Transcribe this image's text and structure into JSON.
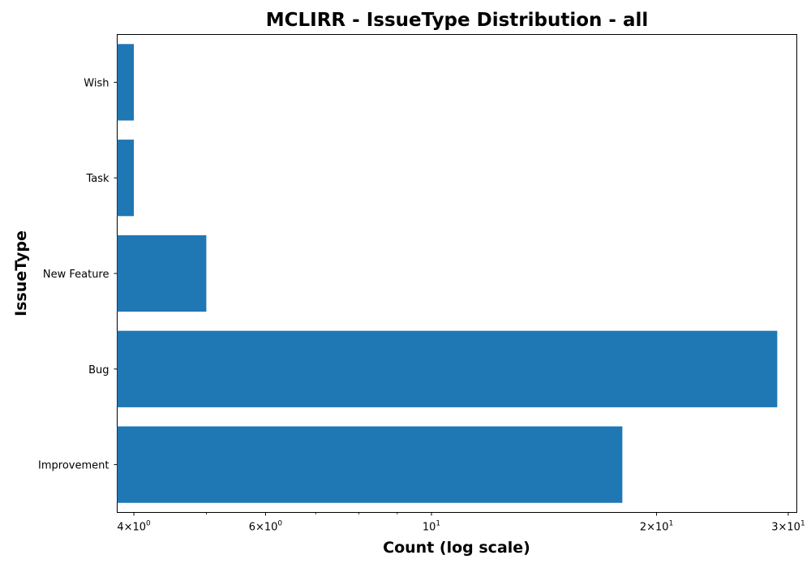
{
  "chart_data": {
    "type": "bar",
    "orientation": "horizontal",
    "title": "MCLIRR - IssueType Distribution - all",
    "xlabel": "Count (log scale)",
    "ylabel": "IssueType",
    "x_scale": "log",
    "xlim": [
      3.8,
      30.8
    ],
    "categories": [
      "Improvement",
      "Bug",
      "New Feature",
      "Task",
      "Wish"
    ],
    "values": [
      18,
      29,
      5,
      4,
      4
    ],
    "bar_color": "#1f77b4",
    "x_major_ticks": [
      {
        "value": 4,
        "base": "4×10",
        "exp": "0"
      },
      {
        "value": 6,
        "base": "6×10",
        "exp": "0"
      },
      {
        "value": 10,
        "base": "10",
        "exp": "1"
      },
      {
        "value": 20,
        "base": "2×10",
        "exp": "1"
      },
      {
        "value": 30,
        "base": "3×10",
        "exp": "1"
      }
    ],
    "x_minor_ticks": [
      5,
      7,
      8,
      9
    ]
  }
}
